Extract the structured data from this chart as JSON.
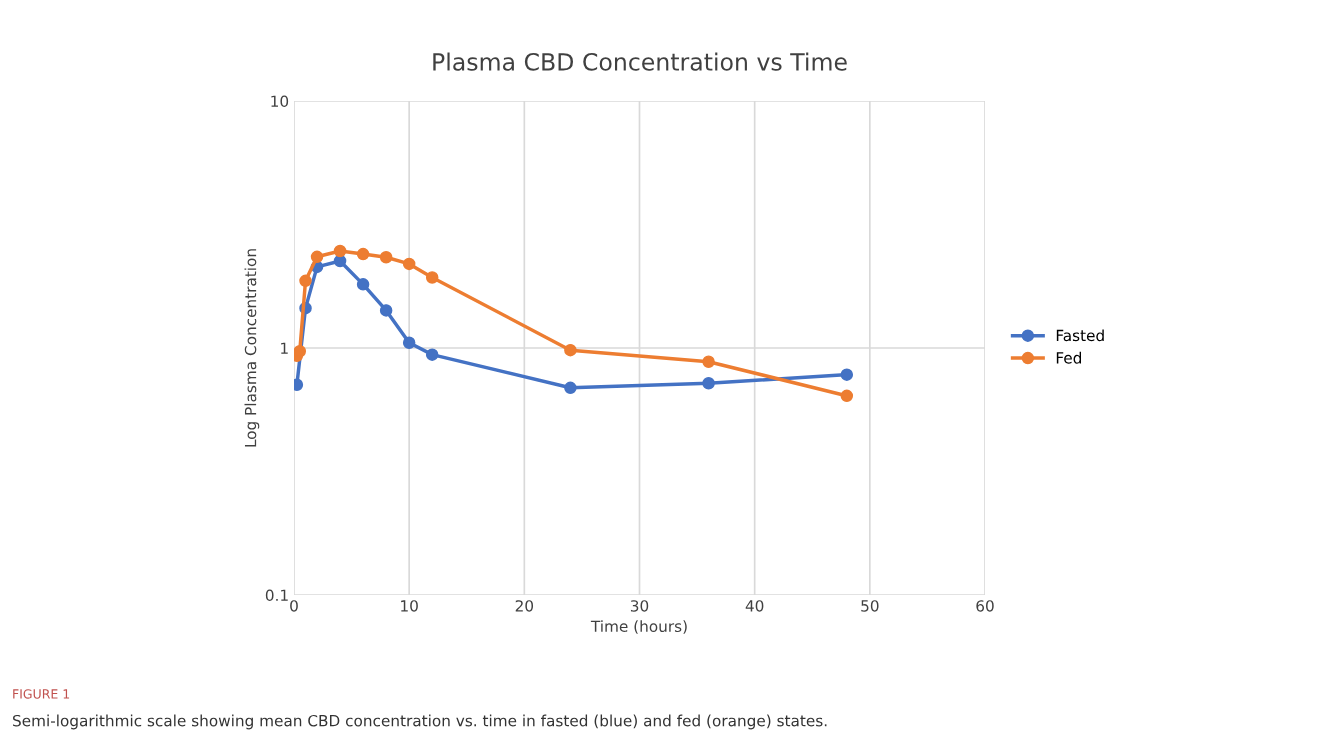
{
  "chart_data": {
    "type": "line",
    "title": "Plasma CBD Concentration vs Time",
    "xlabel": "Time (hours)",
    "ylabel": "Log Plasma Concentration",
    "series": [
      {
        "name": "Fasted",
        "color": "#4472c4",
        "x": [
          0.25,
          1,
          2,
          4,
          6,
          8,
          10,
          12,
          24,
          36,
          48
        ],
        "values": [
          0.71,
          1.45,
          2.13,
          2.25,
          1.81,
          1.42,
          1.05,
          0.94,
          0.69,
          0.72,
          0.78
        ]
      },
      {
        "name": "Fed",
        "color": "#ed7d31",
        "x": [
          0.25,
          0.5,
          1,
          2,
          4,
          6,
          8,
          10,
          12,
          24,
          36,
          48
        ],
        "values": [
          0.93,
          0.97,
          1.87,
          2.34,
          2.47,
          2.4,
          2.33,
          2.19,
          1.93,
          0.98,
          0.88,
          0.64
        ]
      }
    ],
    "log": "y",
    "xlim": [
      0,
      60
    ],
    "xticks": [
      0,
      10,
      20,
      30,
      40,
      50,
      60
    ],
    "ylim": [
      0.1,
      10
    ],
    "yticks": [
      0.1,
      1,
      10
    ],
    "grid": true,
    "legend": "right",
    "marker": "circle",
    "line_style": "solid",
    "annotations": [
      "FIGURE 1",
      "Semi-logarithmic scale showing mean CBD concentration vs. time in fasted (blue) and fed (orange) states."
    ]
  }
}
